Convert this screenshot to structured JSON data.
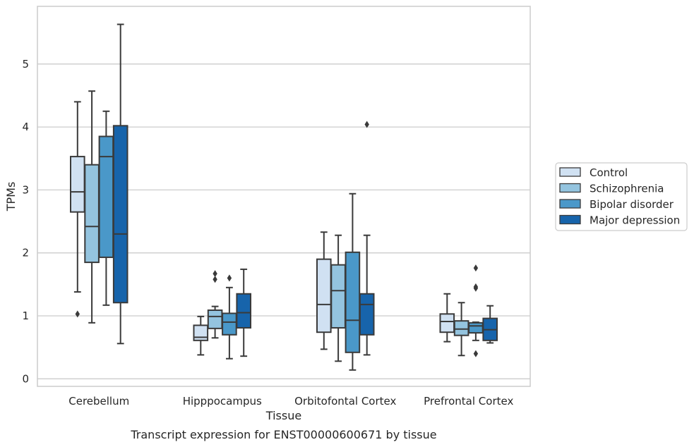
{
  "chart_data": {
    "type": "box",
    "title": "",
    "caption": "Transcript expression for ENST00000600671 by tissue",
    "xlabel": "Tissue",
    "ylabel": "TPMs",
    "ylim": [
      -0.1,
      5.9
    ],
    "yticks": [
      0,
      1,
      2,
      3,
      4,
      5
    ],
    "grid": "horizontal",
    "legend_position": "right",
    "categories": [
      "Cerebellum",
      "Hipppocampus",
      "Orbitofontal Cortex",
      "Prefrontal Cortex"
    ],
    "series": [
      {
        "name": "Control",
        "color": "#d0e1f2",
        "boxes": [
          {
            "whislo": 1.38,
            "q1": 2.65,
            "med": 2.97,
            "q3": 3.53,
            "whishi": 4.4,
            "fliers": [
              1.03
            ]
          },
          {
            "whislo": 0.38,
            "q1": 0.61,
            "med": 0.66,
            "q3": 0.85,
            "whishi": 0.99,
            "fliers": []
          },
          {
            "whislo": 0.47,
            "q1": 0.74,
            "med": 1.18,
            "q3": 1.9,
            "whishi": 2.33,
            "fliers": []
          },
          {
            "whislo": 0.59,
            "q1": 0.74,
            "med": 0.91,
            "q3": 1.03,
            "whishi": 1.35,
            "fliers": []
          }
        ]
      },
      {
        "name": "Schizophrenia",
        "color": "#94c4df",
        "boxes": [
          {
            "whislo": 0.89,
            "q1": 1.85,
            "med": 2.42,
            "q3": 3.4,
            "whishi": 4.57,
            "fliers": []
          },
          {
            "whislo": 0.65,
            "q1": 0.8,
            "med": 0.99,
            "q3": 1.09,
            "whishi": 1.15,
            "fliers": [
              1.58,
              1.67
            ]
          },
          {
            "whislo": 0.28,
            "q1": 0.81,
            "med": 1.4,
            "q3": 1.81,
            "whishi": 2.28,
            "fliers": []
          },
          {
            "whislo": 0.37,
            "q1": 0.69,
            "med": 0.79,
            "q3": 0.92,
            "whishi": 1.21,
            "fliers": []
          }
        ]
      },
      {
        "name": "Bipolar disorder",
        "color": "#4a98c9",
        "boxes": [
          {
            "whislo": 1.17,
            "q1": 1.93,
            "med": 3.53,
            "q3": 3.85,
            "whishi": 4.25,
            "fliers": []
          },
          {
            "whislo": 0.32,
            "q1": 0.7,
            "med": 0.9,
            "q3": 1.04,
            "whishi": 1.45,
            "fliers": [
              1.6
            ]
          },
          {
            "whislo": 0.14,
            "q1": 0.42,
            "med": 0.93,
            "q3": 2.01,
            "whishi": 2.94,
            "fliers": []
          },
          {
            "whislo": 0.61,
            "q1": 0.73,
            "med": 0.84,
            "q3": 0.89,
            "whishi": 0.9,
            "fliers": [
              0.4,
              1.44,
              1.46,
              1.76
            ]
          }
        ]
      },
      {
        "name": "Major depression",
        "color": "#1764ab",
        "boxes": [
          {
            "whislo": 0.56,
            "q1": 1.21,
            "med": 2.3,
            "q3": 4.02,
            "whishi": 5.63,
            "fliers": []
          },
          {
            "whislo": 0.36,
            "q1": 0.81,
            "med": 1.05,
            "q3": 1.35,
            "whishi": 1.74,
            "fliers": []
          },
          {
            "whislo": 0.38,
            "q1": 0.7,
            "med": 1.18,
            "q3": 1.35,
            "whishi": 2.28,
            "fliers": [
              4.04
            ]
          },
          {
            "whislo": 0.57,
            "q1": 0.61,
            "med": 0.78,
            "q3": 0.96,
            "whishi": 1.16,
            "fliers": []
          }
        ]
      }
    ]
  }
}
